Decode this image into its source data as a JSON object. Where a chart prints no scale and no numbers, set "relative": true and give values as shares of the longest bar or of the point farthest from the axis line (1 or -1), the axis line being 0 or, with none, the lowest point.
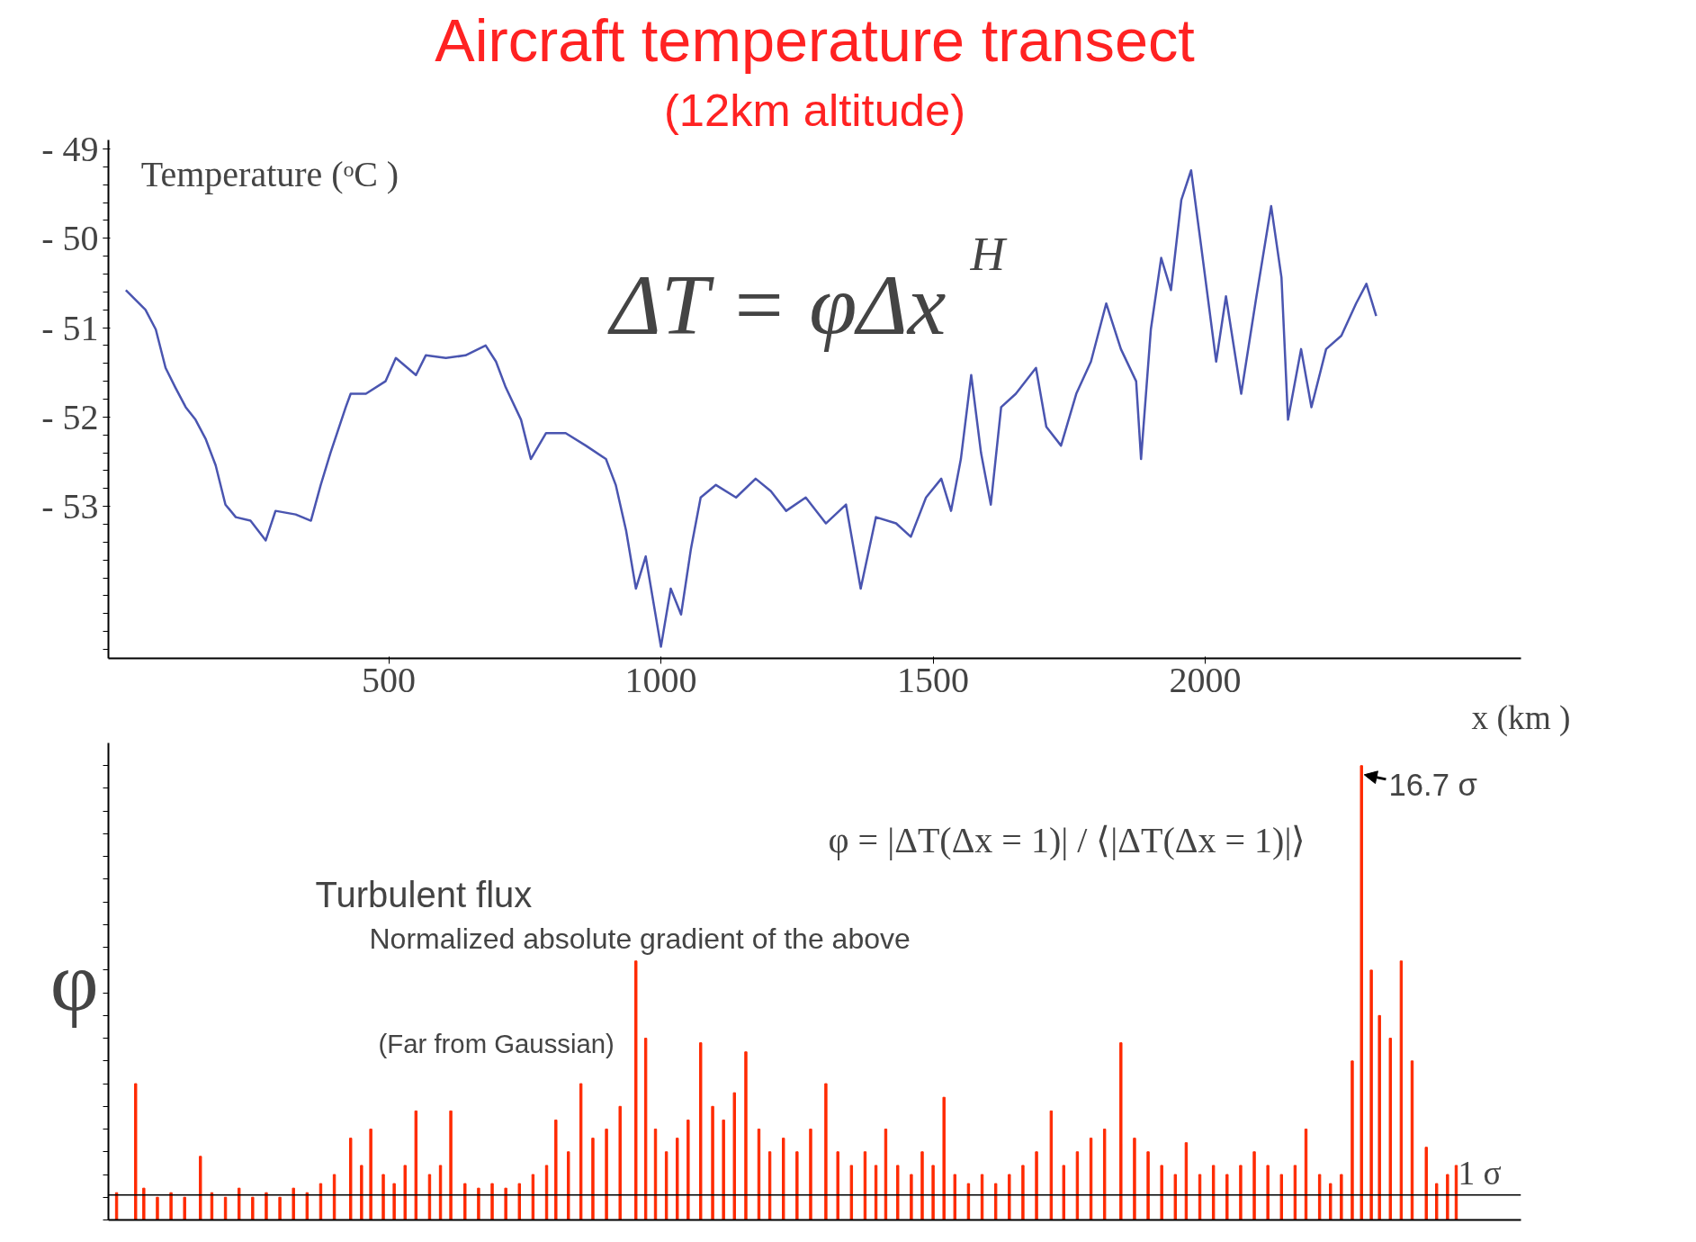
{
  "chart_data": [
    {
      "type": "line",
      "title": "Aircraft temperature transect",
      "subtitle": "(12km altitude)",
      "xlabel": "x (km )",
      "ylabel": "Temperature (ᵒC )",
      "annotations": [
        "ΔT = φΔx$^{H}$"
      ],
      "x": [
        17,
        53,
        72,
        90,
        108,
        127,
        145,
        164,
        182,
        200,
        219,
        246,
        274,
        292,
        329,
        357,
        375,
        393,
        421,
        430,
        458,
        494,
        513,
        550,
        568,
        605,
        641,
        678,
        697,
        715,
        743,
        761,
        789,
        825,
        862,
        899,
        917,
        936,
        954,
        972,
        1000,
        1018,
        1037,
        1055,
        1073,
        1101,
        1138,
        1174,
        1202,
        1230,
        1266,
        1303,
        1340,
        1367,
        1395,
        1432,
        1459,
        1487,
        1515,
        1533,
        1551,
        1570,
        1588,
        1606,
        1625,
        1652,
        1689,
        1708,
        1735,
        1763,
        1790,
        1818,
        1845,
        1873,
        1882,
        1900,
        1919,
        1937,
        1956,
        1974,
        1992,
        2020,
        2038,
        2066,
        2094,
        2121,
        2140,
        2152,
        2176,
        2195,
        2222,
        2250,
        2277,
        2296,
        2314
      ],
      "series": [
        {
          "color": "#4a55b0",
          "values": [
            -50.58,
            -50.8,
            -51.02,
            -51.45,
            -51.67,
            -51.89,
            -52.03,
            -52.25,
            -52.54,
            -52.98,
            -53.12,
            -53.16,
            -53.38,
            -53.05,
            -53.09,
            -53.16,
            -52.76,
            -52.4,
            -51.89,
            -51.74,
            -51.74,
            -51.6,
            -51.34,
            -51.53,
            -51.31,
            -51.34,
            -51.31,
            -51.2,
            -51.38,
            -51.67,
            -52.03,
            -52.47,
            -52.18,
            -52.18,
            -52.32,
            -52.47,
            -52.76,
            -53.27,
            -53.92,
            -53.56,
            -54.57,
            -53.92,
            -54.21,
            -53.48,
            -52.9,
            -52.76,
            -52.9,
            -52.69,
            -52.83,
            -53.05,
            -52.9,
            -53.19,
            -52.98,
            -53.92,
            -53.12,
            -53.19,
            -53.34,
            -52.9,
            -52.69,
            -53.05,
            -52.47,
            -51.53,
            -52.4,
            -52.98,
            -51.89,
            -51.74,
            -51.45,
            -52.11,
            -52.32,
            -51.74,
            -51.38,
            -50.73,
            -51.24,
            -51.6,
            -52.47,
            -51.02,
            -50.22,
            -50.58,
            -49.57,
            -49.24,
            -50.07,
            -51.38,
            -50.65,
            -51.74,
            -50.65,
            -49.64,
            -50.44,
            -52.03,
            -51.24,
            -51.89,
            -51.24,
            -51.09,
            -50.73,
            -50.51,
            -50.87
          ]
        }
      ],
      "xlim": [
        -15,
        2580
      ],
      "xticks": [
        500,
        1000,
        1500,
        2000
      ],
      "ylim": [
        -54.7,
        -48.9
      ],
      "yticks": [
        {
          "value": -49,
          "label": "- 49"
        },
        {
          "value": -50,
          "label": "- 50"
        },
        {
          "value": -51,
          "label": "- 51"
        },
        {
          "value": -52,
          "label": "- 52"
        },
        {
          "value": -53,
          "label": "- 53"
        }
      ],
      "grid": false,
      "marker": "none",
      "line_style": "solid"
    },
    {
      "type": "bar",
      "relative": true,
      "ylabel": "φ",
      "xlim": [
        -15,
        2580
      ],
      "annotations": [
        "Turbulent flux",
        "Normalized absolute gradient of the above",
        "(Far from Gaussian)",
        "φ = |ΔT(Δx = 1)| / ⟨|ΔT(Δx = 1)|⟩",
        {
          "text": "16.7 σ",
          "x": 2287,
          "y": 1
        }
      ],
      "ref_lines": [
        {
          "axis": "y",
          "value": 0.055,
          "label": "1 σ",
          "color": "#000000"
        }
      ],
      "x": [
        0,
        35,
        50,
        75,
        100,
        125,
        154,
        175,
        200,
        225,
        250,
        275,
        300,
        325,
        350,
        375,
        400,
        430,
        450,
        467,
        490,
        510,
        530,
        550,
        575,
        595,
        614,
        640,
        665,
        690,
        715,
        740,
        765,
        790,
        807,
        830,
        853,
        875,
        900,
        925,
        954,
        972,
        990,
        1010,
        1030,
        1050,
        1073,
        1095,
        1115,
        1135,
        1156,
        1180,
        1200,
        1225,
        1250,
        1275,
        1303,
        1325,
        1350,
        1375,
        1395,
        1413,
        1435,
        1460,
        1480,
        1500,
        1520,
        1540,
        1565,
        1590,
        1615,
        1640,
        1665,
        1690,
        1717,
        1740,
        1765,
        1790,
        1815,
        1845,
        1870,
        1895,
        1920,
        1945,
        1965,
        1990,
        2015,
        2040,
        2065,
        2090,
        2115,
        2140,
        2165,
        2185,
        2210,
        2230,
        2250,
        2270,
        2287,
        2305,
        2320,
        2340,
        2360,
        2380,
        2406,
        2425,
        2445,
        2461
      ],
      "series": [
        {
          "color": "#ff2a00",
          "values": [
            0.06,
            0.3,
            0.07,
            0.05,
            0.06,
            0.05,
            0.14,
            0.06,
            0.05,
            0.07,
            0.05,
            0.06,
            0.05,
            0.07,
            0.06,
            0.08,
            0.1,
            0.18,
            0.12,
            0.2,
            0.1,
            0.08,
            0.12,
            0.24,
            0.1,
            0.12,
            0.24,
            0.08,
            0.07,
            0.08,
            0.07,
            0.08,
            0.1,
            0.12,
            0.22,
            0.15,
            0.3,
            0.18,
            0.2,
            0.25,
            0.57,
            0.4,
            0.2,
            0.15,
            0.18,
            0.22,
            0.39,
            0.25,
            0.22,
            0.28,
            0.37,
            0.2,
            0.15,
            0.18,
            0.15,
            0.2,
            0.3,
            0.15,
            0.12,
            0.15,
            0.12,
            0.2,
            0.12,
            0.1,
            0.15,
            0.12,
            0.27,
            0.1,
            0.08,
            0.1,
            0.08,
            0.1,
            0.12,
            0.15,
            0.24,
            0.12,
            0.15,
            0.18,
            0.2,
            0.39,
            0.18,
            0.15,
            0.12,
            0.1,
            0.17,
            0.1,
            0.12,
            0.1,
            0.12,
            0.15,
            0.12,
            0.1,
            0.12,
            0.2,
            0.1,
            0.08,
            0.1,
            0.35,
            1.0,
            0.55,
            0.45,
            0.4,
            0.57,
            0.35,
            0.16,
            0.08,
            0.1,
            0.12
          ]
        }
      ],
      "grid": false
    }
  ]
}
